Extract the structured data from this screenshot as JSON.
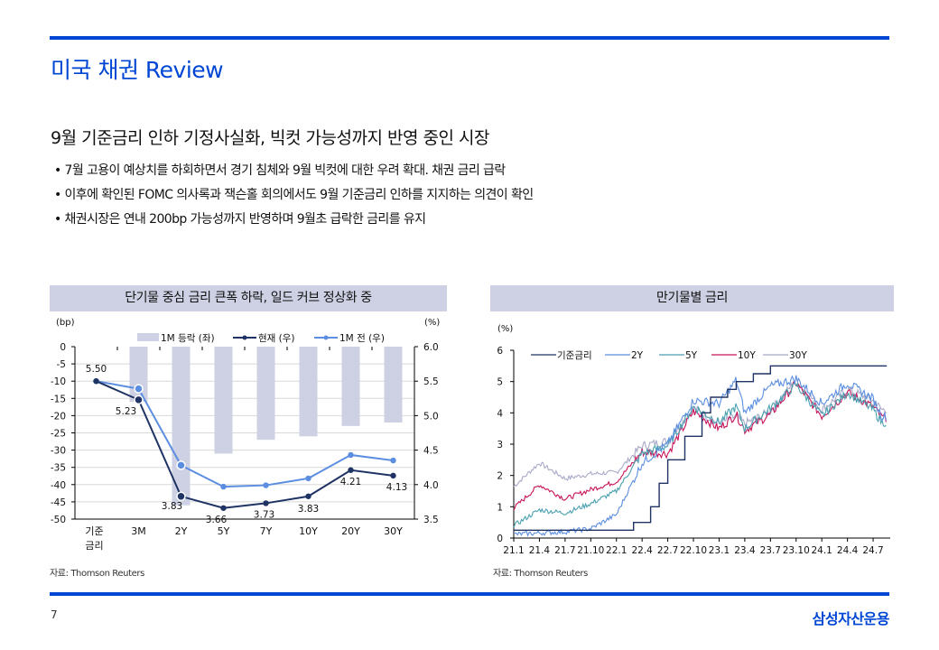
{
  "page": {
    "title": "미국 채권 Review",
    "headline": "9월 기준금리 인하 기정사실화, 빅컷 가능성까지 반영 중인 시장",
    "bullets": [
      "7월 고용이 예상치를 하회하면서 경기 침체와 9월 빅컷에 대한 우려 확대. 채권 금리 급락",
      "이후에 확인된 FOMC 의사록과 잭슨홀 회의에서도 9월 기준금리 인하를 지지하는 의견이 확인",
      "채권시장은 연내 200bp 가능성까지 반영하며 9월초 급락한 금리를 유지"
    ],
    "page_number": "7",
    "brand": "삼성자산운용",
    "accent_color": "#0046d5"
  },
  "chart_data": [
    {
      "type": "bar+line",
      "title": "단기물 중심 금리 큰폭 하락, 일드 커브 정상화 중",
      "left_unit": "(bp)",
      "right_unit": "(%)",
      "categories": [
        "기준\n금리",
        "3M",
        "2Y",
        "5Y",
        "7Y",
        "10Y",
        "20Y",
        "30Y"
      ],
      "category_labels": [
        [
          "기준",
          "금리"
        ],
        [
          "3M"
        ],
        [
          "2Y"
        ],
        [
          "5Y"
        ],
        [
          "7Y"
        ],
        [
          "10Y"
        ],
        [
          "20Y"
        ],
        [
          "30Y"
        ]
      ],
      "left_axis": {
        "range": [
          -50,
          0
        ],
        "ticks": [
          0,
          -5,
          -10,
          -15,
          -20,
          -25,
          -30,
          -35,
          -40,
          -45,
          -50
        ]
      },
      "right_axis": {
        "range": [
          3.5,
          6.0
        ],
        "ticks": [
          "6.0",
          "5.5",
          "5.0",
          "4.5",
          "4.0",
          "3.5"
        ]
      },
      "legend": [
        "1M 등락 (좌)",
        "현재 (우)",
        "1M 전 (우)"
      ],
      "series": [
        {
          "name": "1M 등락 (좌)",
          "type": "bar",
          "axis": "left",
          "color": "#cdd1e3",
          "values": [
            0,
            -16,
            -46,
            -31,
            -27,
            -26,
            -23,
            -22
          ]
        },
        {
          "name": "현재 (우)",
          "type": "line",
          "axis": "right",
          "color": "#1f3464",
          "values": [
            5.5,
            5.23,
            3.83,
            3.66,
            3.73,
            3.83,
            4.21,
            4.13
          ]
        },
        {
          "name": "1M 전 (우)",
          "type": "line",
          "axis": "right",
          "color": "#5b8ee0",
          "values": [
            5.5,
            5.39,
            4.28,
            3.97,
            3.99,
            4.09,
            4.43,
            4.35
          ]
        }
      ],
      "data_labels": [
        {
          "series": "현재 (우)",
          "index": 0,
          "text": "5.50"
        },
        {
          "series": "현재 (우)",
          "index": 1,
          "text": "5.23"
        },
        {
          "series": "현재 (우)",
          "index": 2,
          "text": "3.83"
        },
        {
          "series": "현재 (우)",
          "index": 3,
          "text": "3.66"
        },
        {
          "series": "현재 (우)",
          "index": 4,
          "text": "3.73"
        },
        {
          "series": "현재 (우)",
          "index": 5,
          "text": "3.83"
        },
        {
          "series": "현재 (우)",
          "index": 6,
          "text": "4.21"
        },
        {
          "series": "현재 (우)",
          "index": 7,
          "text": "4.13"
        }
      ],
      "grid": true,
      "source": "자료: Thomson Reuters"
    },
    {
      "type": "line",
      "title": "만기물별 금리",
      "ylabel": "(%)",
      "ylim": [
        0,
        6
      ],
      "yticks": [
        "0",
        "1",
        "2",
        "3",
        "4",
        "5",
        "6"
      ],
      "x_ticks": [
        "21.1",
        "21.4",
        "21.7",
        "21.10",
        "22.1",
        "22.4",
        "22.7",
        "22.10",
        "23.1",
        "23.4",
        "23.7",
        "23.10",
        "24.1",
        "24.4",
        "24.7"
      ],
      "legend": [
        "기준금리",
        "2Y",
        "5Y",
        "10Y",
        "30Y"
      ],
      "series": [
        {
          "name": "기준금리",
          "color": "#1f3464",
          "x": [
            "21.1",
            "22.3",
            "22.5",
            "22.6",
            "22.7",
            "22.9",
            "22.11",
            "22.12",
            "23.2",
            "23.3",
            "23.5",
            "23.7",
            "24.8"
          ],
          "values": [
            0.25,
            0.5,
            1.0,
            1.75,
            2.5,
            3.25,
            4.0,
            4.5,
            4.75,
            5.0,
            5.25,
            5.5,
            5.5
          ]
        },
        {
          "name": "2Y",
          "color": "#5b8ee0",
          "x": [
            "21.1",
            "21.4",
            "21.7",
            "21.10",
            "22.1",
            "22.4",
            "22.7",
            "22.10",
            "23.1",
            "23.3",
            "23.4",
            "23.7",
            "23.10",
            "24.1",
            "24.4",
            "24.7",
            "24.8"
          ],
          "values": [
            0.12,
            0.16,
            0.2,
            0.3,
            0.75,
            2.4,
            3.0,
            4.4,
            4.3,
            5.05,
            4.0,
            4.85,
            5.1,
            4.3,
            4.95,
            4.45,
            3.9
          ]
        },
        {
          "name": "5Y",
          "color": "#4aa0b0",
          "x": [
            "21.1",
            "21.4",
            "21.7",
            "21.10",
            "22.1",
            "22.4",
            "22.7",
            "22.10",
            "23.1",
            "23.3",
            "23.4",
            "23.7",
            "23.10",
            "24.1",
            "24.4",
            "24.7",
            "24.8"
          ],
          "values": [
            0.4,
            0.9,
            0.8,
            1.1,
            1.5,
            2.7,
            2.95,
            4.2,
            3.7,
            4.2,
            3.5,
            4.15,
            4.9,
            3.9,
            4.65,
            4.1,
            3.7
          ]
        },
        {
          "name": "10Y",
          "color": "#c8145a",
          "x": [
            "21.1",
            "21.4",
            "21.7",
            "21.10",
            "22.1",
            "22.4",
            "22.7",
            "22.10",
            "23.1",
            "23.3",
            "23.4",
            "23.7",
            "23.10",
            "24.1",
            "24.4",
            "24.7",
            "24.8"
          ],
          "values": [
            0.95,
            1.7,
            1.25,
            1.55,
            1.8,
            2.75,
            2.7,
            4.05,
            3.5,
            3.95,
            3.45,
            3.95,
            4.95,
            3.9,
            4.65,
            4.2,
            3.85
          ]
        },
        {
          "name": "30Y",
          "color": "#a8aac8",
          "x": [
            "21.1",
            "21.4",
            "21.7",
            "21.10",
            "22.1",
            "22.4",
            "22.7",
            "22.10",
            "23.1",
            "23.3",
            "23.4",
            "23.7",
            "23.10",
            "24.1",
            "24.4",
            "24.7",
            "24.8"
          ],
          "values": [
            1.65,
            2.4,
            1.9,
            2.05,
            2.1,
            2.95,
            3.1,
            4.15,
            3.65,
            3.9,
            3.65,
            4.05,
            5.05,
            4.1,
            4.75,
            4.4,
            4.1
          ]
        }
      ],
      "grid": false,
      "legend_position": "top",
      "source": "자료: Thomson Reuters"
    }
  ]
}
